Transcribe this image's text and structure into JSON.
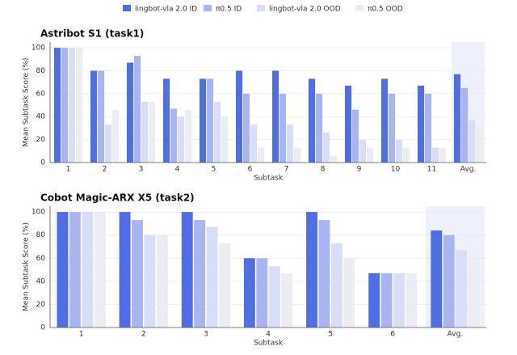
{
  "chart_data": [
    {
      "type": "bar",
      "title": "Astribot S1 (task1)",
      "xlabel": "Subtask",
      "ylabel": "Mean Subtask Score (%)",
      "categories": [
        "1",
        "2",
        "3",
        "4",
        "5",
        "6",
        "7",
        "8",
        "9",
        "10",
        "11",
        "Avg."
      ],
      "series": [
        {
          "name": "lingbot-vla 2.0 ID",
          "color": "#4f6de6",
          "values": [
            100,
            80,
            87,
            73,
            73,
            80,
            80,
            73,
            67,
            73,
            67,
            77
          ]
        },
        {
          "name": "π0.5 ID",
          "color": "#a9b4f2",
          "values": [
            100,
            80,
            93,
            47,
            73,
            60,
            60,
            60,
            46,
            60,
            60,
            65
          ]
        },
        {
          "name": "lingbot-vla 2.0 OOD",
          "color": "#d8ddf8",
          "values": [
            100,
            33,
            53,
            40,
            53,
            33,
            33,
            26,
            20,
            20,
            13,
            37
          ]
        },
        {
          "name": "π0.5 OOD",
          "color": "#ebedf3",
          "values": [
            100,
            46,
            53,
            46,
            40,
            13,
            13,
            6,
            13,
            13,
            13,
            30
          ]
        }
      ],
      "ylim": [
        0,
        105
      ],
      "yticks": [
        0,
        20,
        40,
        60,
        80,
        100
      ],
      "grid": true,
      "highlight_last": true
    },
    {
      "type": "bar",
      "title": "Cobot Magic-ARX X5 (task2)",
      "xlabel": "Subtask",
      "ylabel": "Mean Subtask Score (%)",
      "categories": [
        "1",
        "2",
        "3",
        "4",
        "5",
        "6",
        "Avg."
      ],
      "series": [
        {
          "color": "#4f6de6",
          "values": [
            100,
            100,
            100,
            60,
            100,
            47,
            84
          ]
        },
        {
          "color": "#a9b4f2",
          "values": [
            100,
            93,
            93,
            60,
            93,
            47,
            80
          ]
        },
        {
          "color": "#d8ddf8",
          "values": [
            100,
            80,
            87,
            53,
            73,
            47,
            67
          ]
        },
        {
          "color": "#ebedf3",
          "values": [
            100,
            80,
            73,
            47,
            60,
            47,
            61
          ]
        }
      ],
      "ylim": [
        0,
        105
      ],
      "yticks": [
        0,
        20,
        40,
        60,
        80,
        100
      ],
      "grid": true,
      "highlight_last": true
    }
  ],
  "legend_position": "top"
}
